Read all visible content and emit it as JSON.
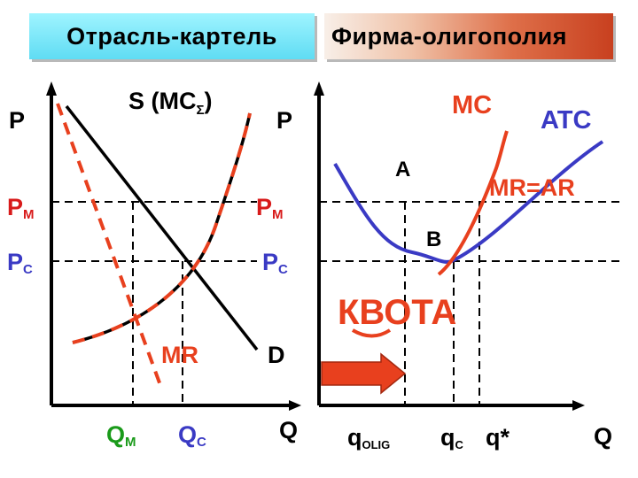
{
  "titles": {
    "industry": "Отрасль-картель",
    "firm": "Фирма-олигополия"
  },
  "industry_graph": {
    "axis_y": "P",
    "axis_x": "Q",
    "supply": {
      "main": "S (MC",
      "sub": "Σ",
      "close": ")"
    },
    "demand": "D",
    "mr": "MR",
    "pm": {
      "main": "P",
      "sub": "M"
    },
    "pc": {
      "main": "P",
      "sub": "C"
    },
    "qm": {
      "main": "Q",
      "sub": "M"
    },
    "qc": {
      "main": "Q",
      "sub": "C"
    }
  },
  "firm_graph": {
    "axis_y": "P",
    "axis_x": "Q",
    "mc": "MC",
    "atc": "ATC",
    "mr_ar": "MR=AR",
    "point_a": "A",
    "point_b": "B",
    "pm": {
      "main": "P",
      "sub": "M"
    },
    "pc": {
      "main": "P",
      "sub": "C"
    },
    "quota": "КВОТА",
    "q_olig": {
      "main": "q",
      "sub": "OLIG"
    },
    "q_c": {
      "main": "q",
      "sub": "C"
    },
    "q_star": "q*"
  },
  "colors": {
    "black": "#000000",
    "red": "#e8401e",
    "blue": "#3a3ac4",
    "crimson": "#d81b1b"
  }
}
